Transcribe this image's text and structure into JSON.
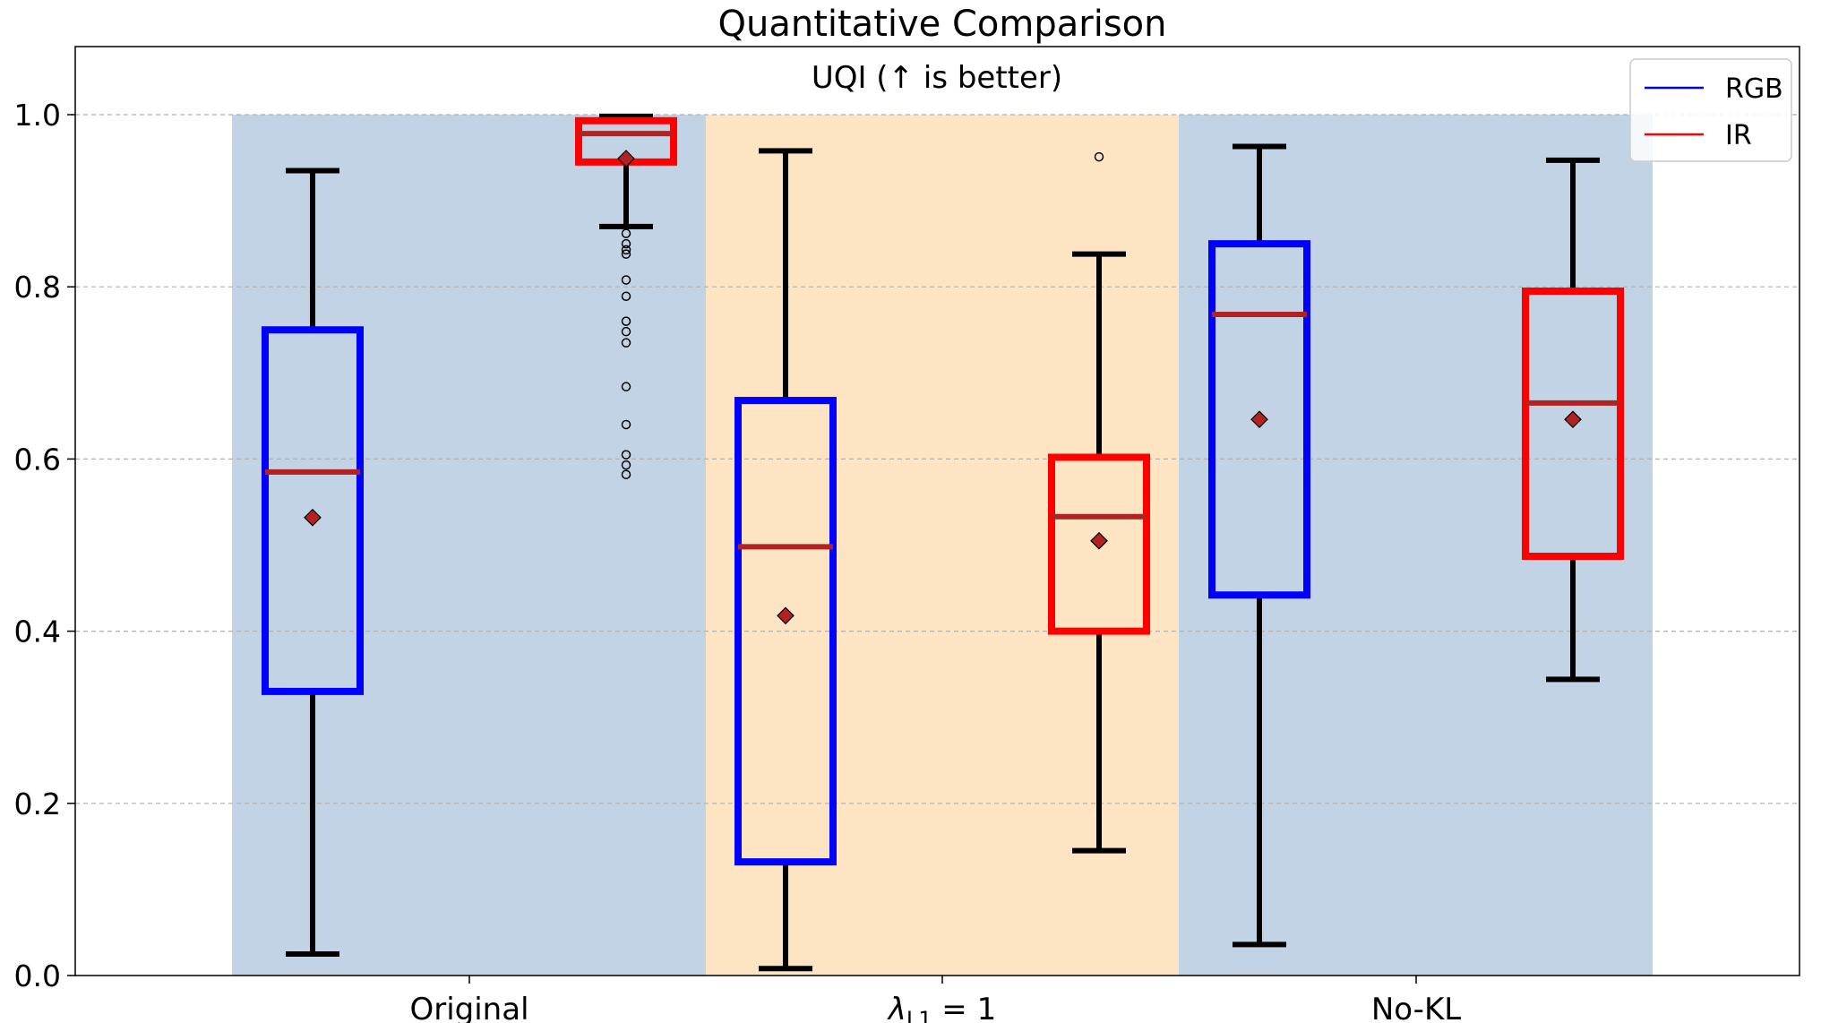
{
  "chart_data": {
    "type": "box",
    "title": "Quantitative Comparison",
    "subtitle": "UQI (↑ is better)",
    "xlabel": "",
    "ylabel": "",
    "ylim": [
      0,
      1.08
    ],
    "yticks": [
      0.0,
      0.2,
      0.4,
      0.6,
      0.8,
      1.0
    ],
    "ytick_labels": [
      "0.0",
      "0.2",
      "0.4",
      "0.6",
      "0.8",
      "1.0"
    ],
    "grid": "horizontal-dashed",
    "legend_position": "top-right",
    "categories": [
      {
        "label": "Original",
        "band_color": "#c3d3e6"
      },
      {
        "label_main": "λ",
        "label_sub": "L1",
        "label_rest": " = 1",
        "band_color": "#fde4c3"
      },
      {
        "label": "No-KL",
        "band_color": "#c3d3e6"
      }
    ],
    "series": [
      {
        "name": "RGB",
        "color": "#0000ff",
        "boxes": [
          {
            "whislo": 0.025,
            "q1": 0.33,
            "median": 0.585,
            "q3": 0.75,
            "whishi": 0.935,
            "mean": 0.532,
            "fliers": []
          },
          {
            "whislo": 0.008,
            "q1": 0.132,
            "median": 0.498,
            "q3": 0.668,
            "whishi": 0.958,
            "mean": 0.418,
            "fliers": []
          },
          {
            "whislo": 0.036,
            "q1": 0.442,
            "median": 0.768,
            "q3": 0.85,
            "whishi": 0.963,
            "mean": 0.646,
            "fliers": []
          }
        ]
      },
      {
        "name": "IR",
        "color": "#ff0000",
        "boxes": [
          {
            "whislo": 0.87,
            "q1": 0.945,
            "median": 0.978,
            "q3": 0.993,
            "whishi": 0.998,
            "mean": 0.949,
            "fliers": [
              0.862,
              0.85,
              0.843,
              0.838,
              0.808,
              0.789,
              0.76,
              0.748,
              0.735,
              0.684,
              0.64,
              0.605,
              0.593,
              0.582
            ]
          },
          {
            "whislo": 0.145,
            "q1": 0.4,
            "median": 0.533,
            "q3": 0.602,
            "whishi": 0.838,
            "mean": 0.505,
            "fliers": [
              0.951
            ]
          },
          {
            "whislo": 0.344,
            "q1": 0.487,
            "median": 0.665,
            "q3": 0.795,
            "whishi": 0.947,
            "mean": 0.646,
            "fliers": []
          }
        ]
      }
    ],
    "median_color": "#b22222",
    "mean_color": "#b22222"
  }
}
